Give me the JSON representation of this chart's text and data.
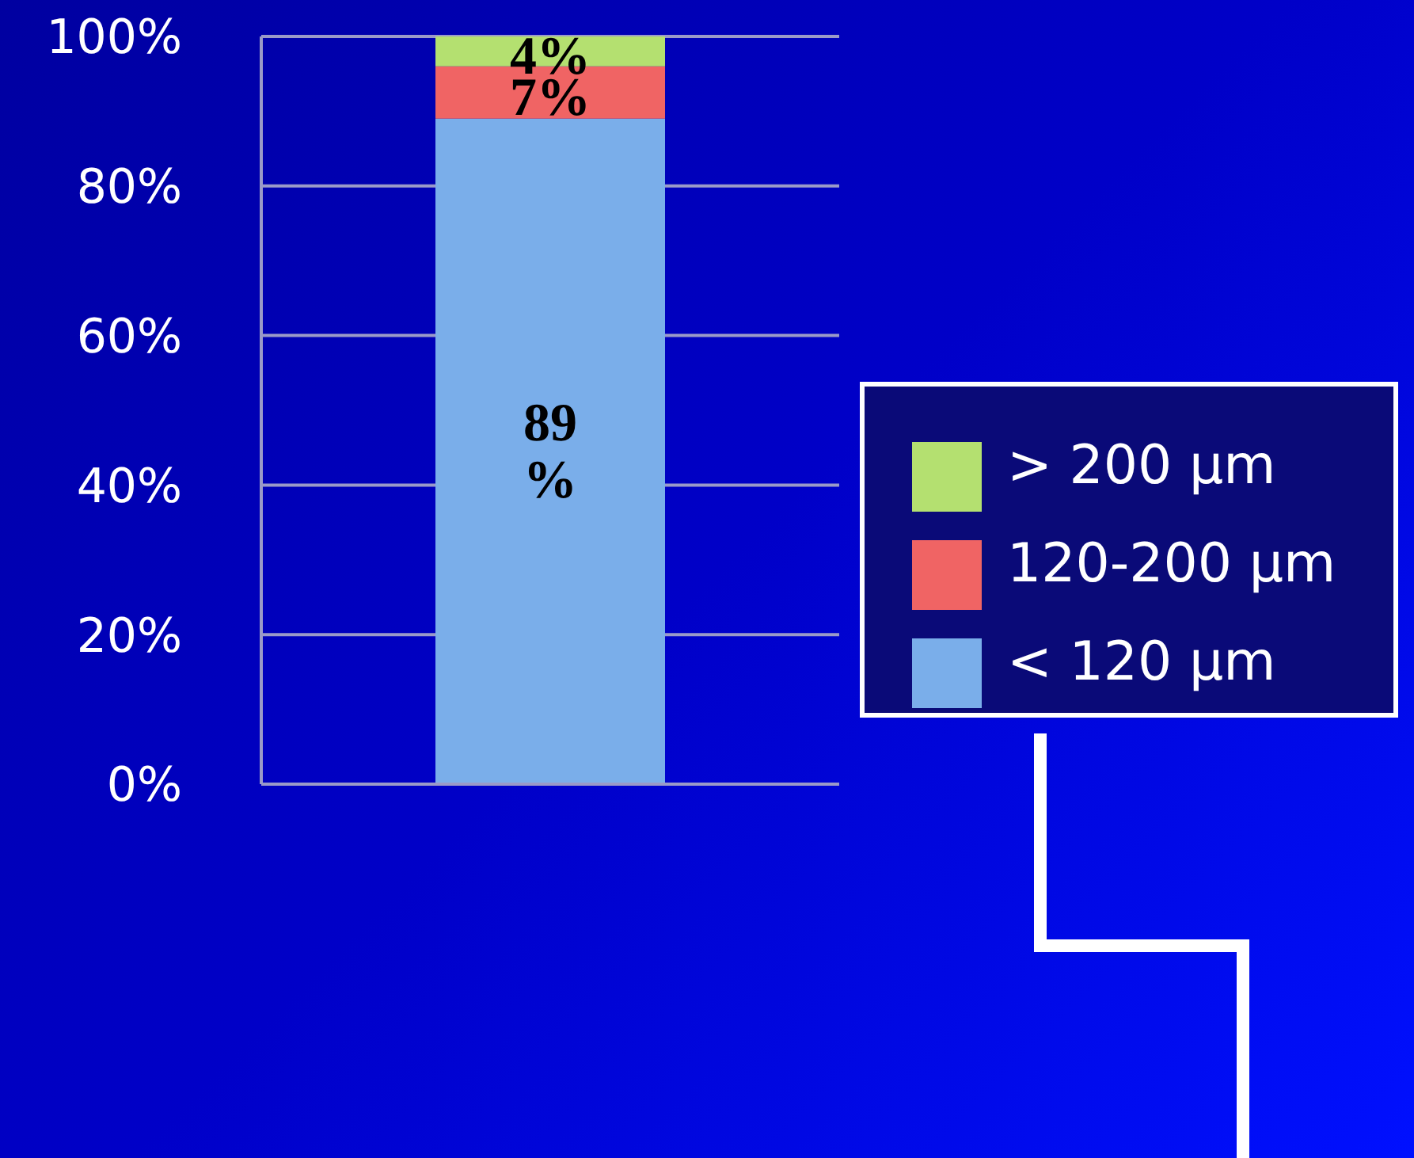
{
  "chart_data": {
    "type": "bar",
    "stacked": true,
    "categories": [
      null
    ],
    "series": [
      {
        "name": "< 120 µm",
        "color": "#7aaeea",
        "values": [
          89
        ],
        "value_labels": [
          "89 %"
        ]
      },
      {
        "name": "120-200 µm",
        "color": "#f06464",
        "values": [
          7
        ],
        "value_labels": [
          "7%"
        ]
      },
      {
        "name": "> 200 µm",
        "color": "#b4e070",
        "values": [
          4
        ],
        "value_labels": [
          "4%"
        ]
      }
    ],
    "ylim": [
      0,
      100
    ],
    "yticks": [
      {
        "value": 0,
        "label": "0%"
      },
      {
        "value": 20,
        "label": "20%"
      },
      {
        "value": 40,
        "label": "40%"
      },
      {
        "value": 60,
        "label": "60%"
      },
      {
        "value": 80,
        "label": "80%"
      },
      {
        "value": 100,
        "label": "100%"
      }
    ],
    "grid": "y",
    "legend": "right"
  }
}
